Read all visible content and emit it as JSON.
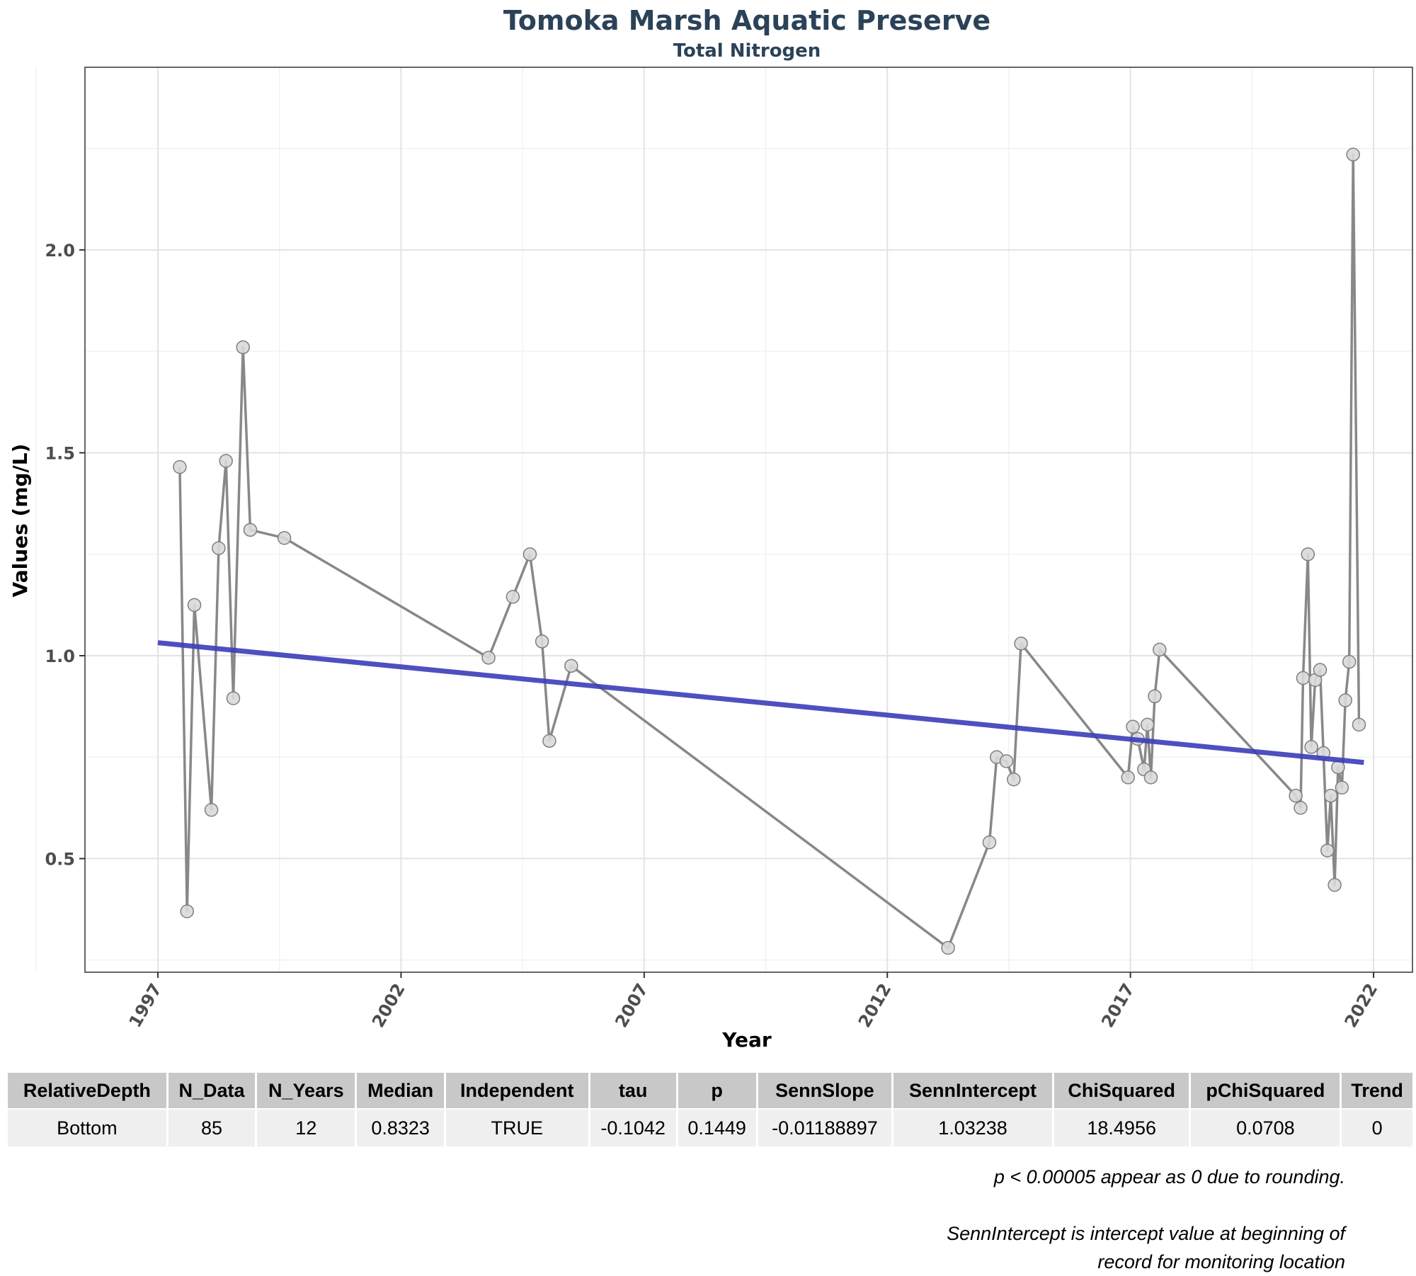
{
  "chart_data": {
    "type": "line",
    "title": "Tomoka Marsh Aquatic Preserve",
    "subtitle": "Total Nitrogen",
    "xlabel": "Year",
    "ylabel": "Values (mg/L)",
    "xlim": [
      1995.5,
      2022.8
    ],
    "ylim": [
      0.22,
      2.45
    ],
    "xticks": [
      "1997",
      "2002",
      "2007",
      "2012",
      "2017",
      "2022"
    ],
    "yticks": [
      "0.5",
      "1.0",
      "1.5",
      "2.0"
    ],
    "grid": true,
    "series": [
      {
        "points": [
          [
            1997.45,
            1.465
          ],
          [
            1997.6,
            0.37
          ],
          [
            1997.75,
            1.125
          ],
          [
            1998.1,
            0.62
          ],
          [
            1998.25,
            1.265
          ],
          [
            1998.4,
            1.48
          ],
          [
            1998.55,
            0.895
          ],
          [
            1998.75,
            1.76
          ],
          [
            1998.9,
            1.31
          ],
          [
            1999.6,
            1.29
          ],
          [
            2003.8,
            0.995
          ],
          [
            2004.3,
            1.145
          ],
          [
            2004.65,
            1.25
          ],
          [
            2004.9,
            1.035
          ],
          [
            2005.05,
            0.79
          ],
          [
            2005.5,
            0.975
          ],
          [
            2013.25,
            0.28
          ],
          [
            2014.1,
            0.54
          ],
          [
            2014.25,
            0.75
          ],
          [
            2014.45,
            0.74
          ],
          [
            2014.6,
            0.695
          ],
          [
            2014.75,
            1.03
          ],
          [
            2016.95,
            0.7
          ],
          [
            2017.05,
            0.825
          ],
          [
            2017.15,
            0.795
          ],
          [
            2017.28,
            0.72
          ],
          [
            2017.35,
            0.83
          ],
          [
            2017.42,
            0.7
          ],
          [
            2017.5,
            0.9
          ],
          [
            2017.6,
            1.015
          ],
          [
            2020.4,
            0.655
          ],
          [
            2020.5,
            0.625
          ],
          [
            2020.55,
            0.945
          ],
          [
            2020.65,
            1.25
          ],
          [
            2020.72,
            0.775
          ],
          [
            2020.8,
            0.94
          ],
          [
            2020.9,
            0.965
          ],
          [
            2020.97,
            0.76
          ],
          [
            2021.05,
            0.52
          ],
          [
            2021.12,
            0.655
          ],
          [
            2021.2,
            0.435
          ],
          [
            2021.27,
            0.725
          ],
          [
            2021.35,
            0.675
          ],
          [
            2021.42,
            0.89
          ],
          [
            2021.5,
            0.985
          ],
          [
            2021.58,
            2.235
          ],
          [
            2021.7,
            0.83
          ]
        ]
      }
    ],
    "trend": {
      "x": [
        1997.0,
        2021.8
      ],
      "y": [
        1.032,
        0.737
      ]
    },
    "colors": {
      "line": "#888888",
      "marker_fill": "#d9d9d9",
      "marker_stroke": "#7f7f7f",
      "trend": "#3b3db8"
    }
  },
  "stats_table": {
    "headers": [
      "RelativeDepth",
      "N_Data",
      "N_Years",
      "Median",
      "Independent",
      "tau",
      "p",
      "SennSlope",
      "SennIntercept",
      "ChiSquared",
      "pChiSquared",
      "Trend"
    ],
    "row": [
      "Bottom",
      "85",
      "12",
      "0.8323",
      "TRUE",
      "-0.1042",
      "0.1449",
      "-0.01188897",
      "1.03238",
      "18.4956",
      "0.0708",
      "0"
    ]
  },
  "notes": {
    "rounding": "p < 0.00005 appear as 0 due to rounding.",
    "intercept_line1": "SennIntercept is intercept value at beginning of",
    "intercept_line2": "record for monitoring location"
  }
}
